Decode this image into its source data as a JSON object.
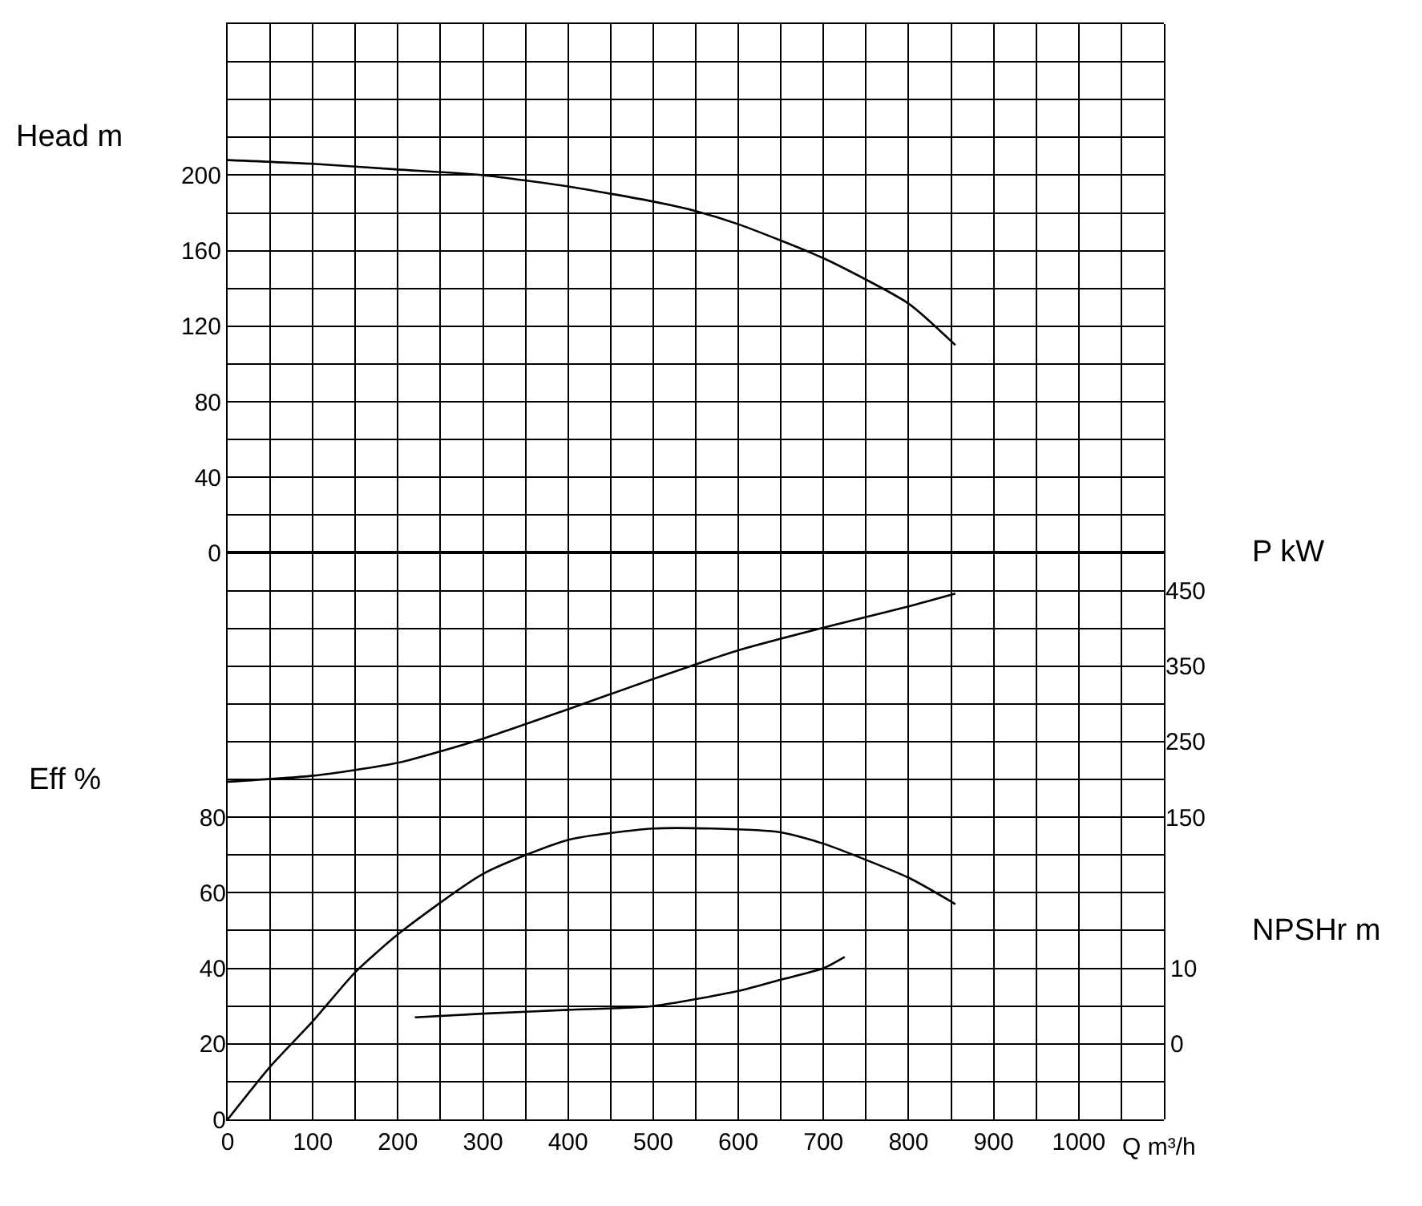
{
  "chart_data": [
    {
      "type": "line",
      "xlabel": "Q m³/h",
      "ylabel": "Head m",
      "y2label": "P kW",
      "y3label": "Eff %",
      "xlim": [
        0,
        1100
      ],
      "xticks": [
        0,
        {
          "value": 50,
          "label": null
        },
        100,
        {
          "value": 150,
          "label": null
        },
        200,
        {
          "value": 250,
          "label": null
        },
        300,
        {
          "value": 350,
          "label": null
        },
        400,
        {
          "value": 450,
          "label": null
        },
        500,
        {
          "value": 550,
          "label": null
        },
        600,
        {
          "value": 650,
          "label": null
        },
        700,
        {
          "value": 750,
          "label": null
        },
        800,
        {
          "value": 850,
          "label": null
        },
        900,
        {
          "value": 950,
          "label": null
        },
        1000,
        {
          "value": 1050,
          "label": null
        }
      ],
      "ylim": [
        -300,
        280
      ],
      "yticks": [
        {
          "value": -300,
          "label": null
        },
        {
          "value": -280,
          "label": null
        },
        {
          "value": -260,
          "label": null
        },
        {
          "value": -240,
          "label": null
        },
        {
          "value": -220,
          "label": null
        },
        {
          "value": -200,
          "label": null
        },
        {
          "value": -180,
          "label": null
        },
        {
          "value": -160,
          "label": null
        },
        {
          "value": -140,
          "label": null
        },
        {
          "value": -120,
          "label": null
        },
        {
          "value": -100,
          "label": null
        },
        {
          "value": -80,
          "label": null
        },
        {
          "value": -60,
          "label": null
        },
        {
          "value": -40,
          "label": null
        },
        {
          "value": -20,
          "label": null
        },
        0,
        {
          "value": 20,
          "label": null
        },
        40,
        {
          "value": 60,
          "label": null
        },
        80,
        {
          "value": 100,
          "label": null
        },
        120,
        {
          "value": 140,
          "label": null
        },
        160,
        {
          "value": 180,
          "label": null
        },
        200,
        {
          "value": 220,
          "label": null
        },
        {
          "value": 240,
          "label": null
        },
        {
          "value": 260,
          "label": null
        },
        {
          "value": 280,
          "label": null
        }
      ],
      "y2lim": [
        -250,
        1200
      ],
      "y2ticks": [
        150,
        250,
        350,
        450
      ],
      "y3lim": [
        0,
        290
      ],
      "y3ticks": [
        0,
        20,
        40,
        60,
        80
      ],
      "grid": true,
      "marker": "none",
      "line_style": "solid",
      "series": [
        {
          "color": "#000000",
          "axis": "y",
          "x": [
            0,
            100,
            200,
            300,
            400,
            500,
            550,
            600,
            700,
            800,
            855
          ],
          "values": [
            208,
            206,
            203,
            200,
            194,
            186,
            181,
            174,
            156,
            132,
            110
          ]
        },
        {
          "color": "#000000",
          "axis": "y2",
          "x": [
            0,
            100,
            200,
            300,
            400,
            500,
            600,
            700,
            800,
            855
          ],
          "values": [
            197,
            205,
            222,
            254,
            293,
            333,
            371,
            401,
            429,
            446
          ]
        },
        {
          "color": "#000000",
          "axis": "y3",
          "x": [
            0,
            50,
            100,
            150,
            200,
            300,
            400,
            500,
            570,
            650,
            700,
            800,
            855
          ],
          "values": [
            0,
            14,
            26,
            39,
            49,
            65,
            74,
            77,
            77,
            76,
            73,
            64,
            57
          ]
        }
      ]
    },
    {
      "type": "line",
      "ylabel": "NPSHr m",
      "xlim": [
        0,
        1100
      ],
      "ylim": [
        -10,
        135
      ],
      "yticks": [
        0,
        10
      ],
      "tick_labels": "y",
      "marker": "none",
      "line_style": "solid",
      "series": [
        {
          "color": "#000000",
          "x": [
            220,
            300,
            400,
            500,
            600,
            650,
            700,
            725
          ],
          "values": [
            3.5,
            4,
            4.5,
            5,
            7,
            8.5,
            10,
            11.5
          ]
        }
      ]
    }
  ]
}
